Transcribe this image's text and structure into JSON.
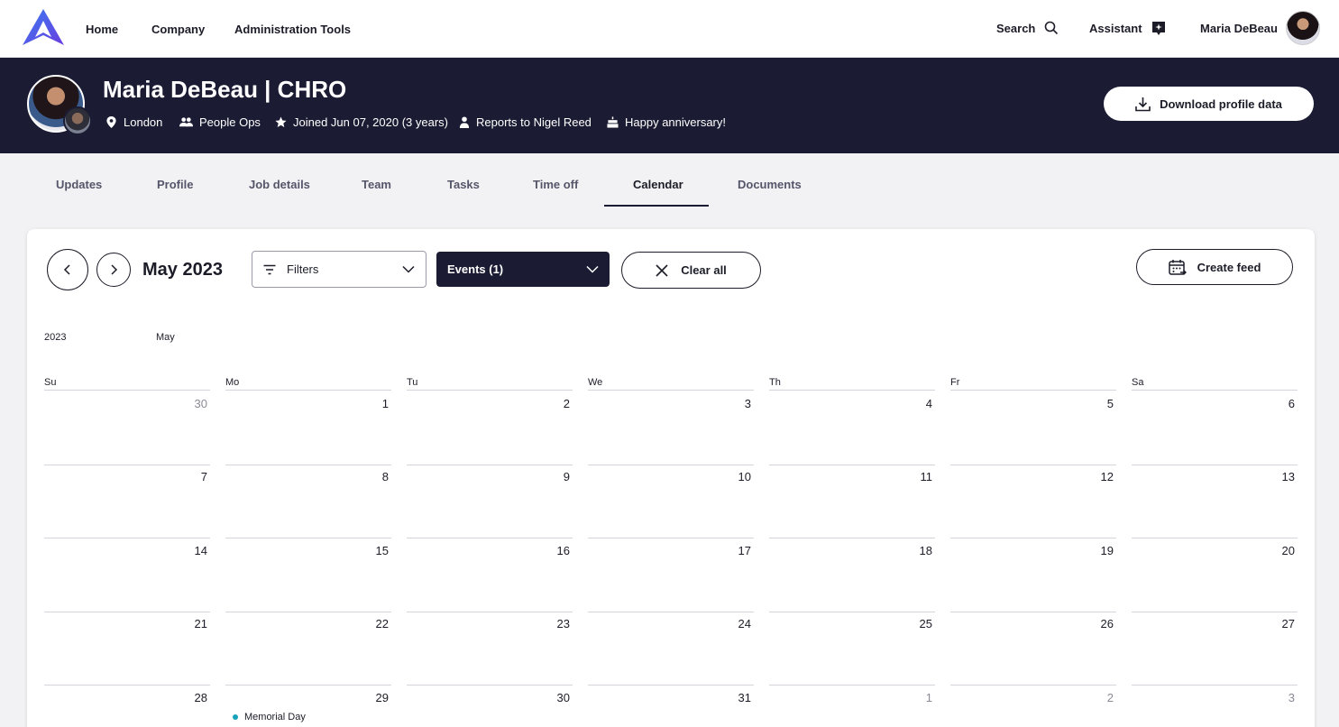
{
  "nav": {
    "links": [
      "Home",
      "Company",
      "Administration Tools"
    ],
    "search_label": "Search",
    "assistant_label": "Assistant",
    "user_name": "Maria DeBeau"
  },
  "profile": {
    "title": "Maria DeBeau | CHRO",
    "location": "London",
    "department": "People Ops",
    "joined": "Joined Jun 07, 2020 (3 years)",
    "reports_to": "Reports to Nigel Reed",
    "anniversary": "Happy anniversary!",
    "download_label": "Download profile data"
  },
  "tabs": [
    {
      "label": "Updates",
      "active": false
    },
    {
      "label": "Profile",
      "active": false
    },
    {
      "label": "Job details",
      "active": false
    },
    {
      "label": "Team",
      "active": false
    },
    {
      "label": "Tasks",
      "active": false
    },
    {
      "label": "Time off",
      "active": false
    },
    {
      "label": "Calendar",
      "active": true
    },
    {
      "label": "Documents",
      "active": false
    }
  ],
  "calendar": {
    "month_title": "May 2023",
    "filters_label": "Filters",
    "events_label": "Events (1)",
    "clear_label": "Clear all",
    "create_feed_label": "Create feed",
    "year_label": "2023",
    "month_label": "May",
    "weekdays": [
      "Su",
      "Mo",
      "Tu",
      "We",
      "Th",
      "Fr",
      "Sa"
    ],
    "weeks": [
      [
        "30",
        "1",
        "2",
        "3",
        "4",
        "5",
        "6"
      ],
      [
        "7",
        "8",
        "9",
        "10",
        "11",
        "12",
        "13"
      ],
      [
        "14",
        "15",
        "16",
        "17",
        "18",
        "19",
        "20"
      ],
      [
        "21",
        "22",
        "23",
        "24",
        "25",
        "26",
        "27"
      ],
      [
        "28",
        "29",
        "30",
        "31",
        "1",
        "2",
        "3"
      ]
    ],
    "events": [
      {
        "week": 4,
        "day": 1,
        "label": "Memorial Day",
        "color": "#17a2b8"
      }
    ]
  },
  "colors": {
    "header_bg": "#1b1c33",
    "accent_logo": "#4a55e8",
    "event_dot": "#17a2b8"
  },
  "icons": [
    "logo-icon",
    "search-icon",
    "assistant-icon",
    "location-pin-icon",
    "people-icon",
    "star-icon",
    "person-icon",
    "cake-icon",
    "download-icon",
    "chevron-left-icon",
    "chevron-right-icon",
    "filter-icon",
    "chevron-down-icon",
    "close-icon",
    "calendar-feed-icon"
  ]
}
